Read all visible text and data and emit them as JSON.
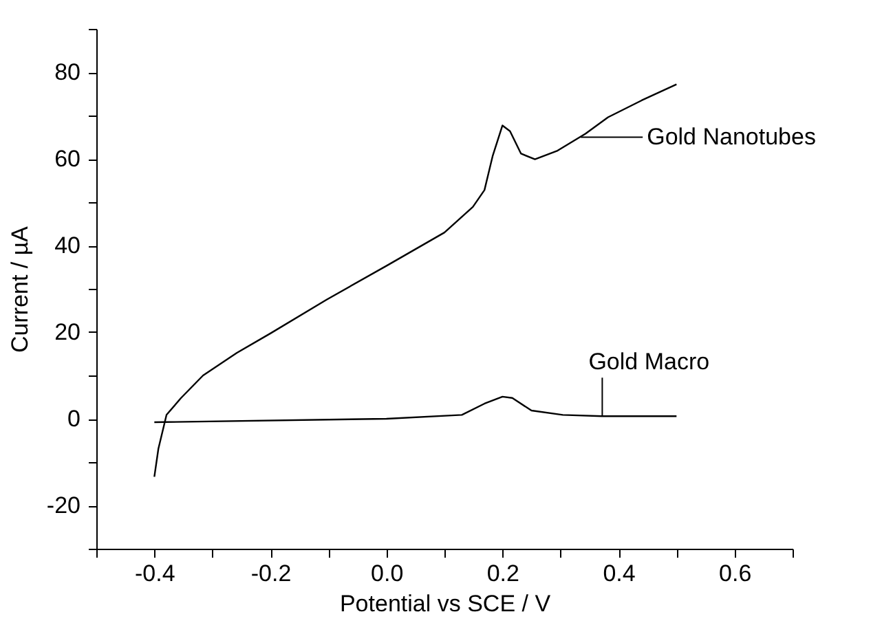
{
  "chart_data": {
    "type": "line",
    "xlabel": "Potential vs SCE / V",
    "ylabel": "Current / µA",
    "xlim": [
      -0.5,
      0.7
    ],
    "ylim": [
      -30,
      90
    ],
    "xticks": [
      {
        "value": -0.5,
        "label": null
      },
      -0.4,
      {
        "value": -0.3,
        "label": null
      },
      -0.2,
      {
        "value": -0.1,
        "label": null
      },
      {
        "value": 0,
        "label": "0.0"
      },
      {
        "value": 0.1,
        "label": null
      },
      0.2,
      {
        "value": 0.3,
        "label": null
      },
      0.4,
      {
        "value": 0.5,
        "label": null
      },
      0.6,
      {
        "value": 0.7,
        "label": null
      }
    ],
    "yticks": [
      {
        "value": -30,
        "label": null
      },
      -20,
      {
        "value": -10,
        "label": null
      },
      0,
      {
        "value": 10,
        "label": null
      },
      20,
      {
        "value": 30,
        "label": null
      },
      40,
      {
        "value": 50,
        "label": null
      },
      60,
      {
        "value": 70,
        "label": null
      },
      80,
      {
        "value": 90,
        "label": null
      }
    ],
    "grid": false,
    "legend": false,
    "marker": "none",
    "line_style": "solid",
    "series": [
      {
        "color": "#000000",
        "x": [
          -0.4,
          -0.393,
          -0.379,
          -0.354,
          -0.316,
          -0.258,
          -0.2,
          -0.103,
          0.0,
          0.1,
          0.149,
          0.169,
          0.183,
          0.2,
          0.213,
          0.232,
          0.256,
          0.295,
          0.343,
          0.382,
          0.44,
          0.5
        ],
        "values": [
          -13.4,
          -6.9,
          0.9,
          4.8,
          10.0,
          15.2,
          19.7,
          27.5,
          35.3,
          43.0,
          48.9,
          52.8,
          60.6,
          67.7,
          66.4,
          61.2,
          59.9,
          61.9,
          65.8,
          69.6,
          73.5,
          77.2
        ]
      },
      {
        "color": "#000000",
        "x": [
          -0.4,
          0.0,
          0.13,
          0.169,
          0.2,
          0.217,
          0.25,
          0.304,
          0.372,
          0.5
        ],
        "values": [
          -0.8,
          0.0,
          0.9,
          3.5,
          5.1,
          4.8,
          1.9,
          0.9,
          0.6,
          0.6
        ]
      }
    ],
    "annotations": [
      {
        "text": "Gold Nanotubes",
        "x": 0.335,
        "y": 65
      },
      {
        "text": "Gold Macro",
        "x": 0.372,
        "y": 0.6
      }
    ]
  }
}
